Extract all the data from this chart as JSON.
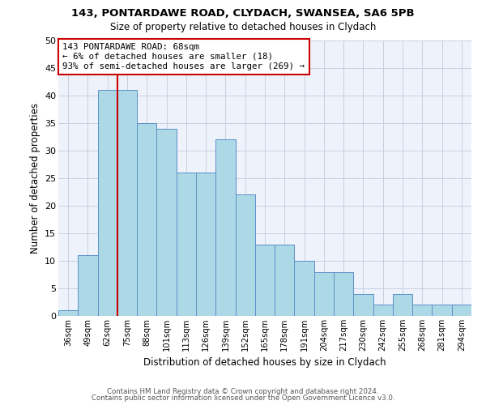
{
  "title1": "143, PONTARDAWE ROAD, CLYDACH, SWANSEA, SA6 5PB",
  "title2": "Size of property relative to detached houses in Clydach",
  "xlabel": "Distribution of detached houses by size in Clydach",
  "ylabel": "Number of detached properties",
  "categories": [
    "36sqm",
    "49sqm",
    "62sqm",
    "75sqm",
    "88sqm",
    "101sqm",
    "113sqm",
    "126sqm",
    "139sqm",
    "152sqm",
    "165sqm",
    "178sqm",
    "191sqm",
    "204sqm",
    "217sqm",
    "230sqm",
    "242sqm",
    "255sqm",
    "268sqm",
    "281sqm",
    "294sqm"
  ],
  "values": [
    1,
    11,
    41,
    41,
    35,
    34,
    26,
    26,
    32,
    22,
    13,
    13,
    10,
    8,
    8,
    4,
    2,
    4,
    2,
    2,
    2
  ],
  "bar_color": "#add8e6",
  "bar_edge_color": "#5b8fc9",
  "vline_x_index": 2,
  "vline_color": "#cc0000",
  "annotation_text": "143 PONTARDAWE ROAD: 68sqm\n← 6% of detached houses are smaller (18)\n93% of semi-detached houses are larger (269) →",
  "annotation_box_color": "#ffffff",
  "annotation_box_edge_color": "#cc0000",
  "ylim": [
    0,
    50
  ],
  "yticks": [
    0,
    5,
    10,
    15,
    20,
    25,
    30,
    35,
    40,
    45,
    50
  ],
  "footer1": "Contains HM Land Registry data © Crown copyright and database right 2024.",
  "footer2": "Contains public sector information licensed under the Open Government Licence v3.0.",
  "bg_color": "#eef2fb",
  "grid_color": "#c8cfe0"
}
